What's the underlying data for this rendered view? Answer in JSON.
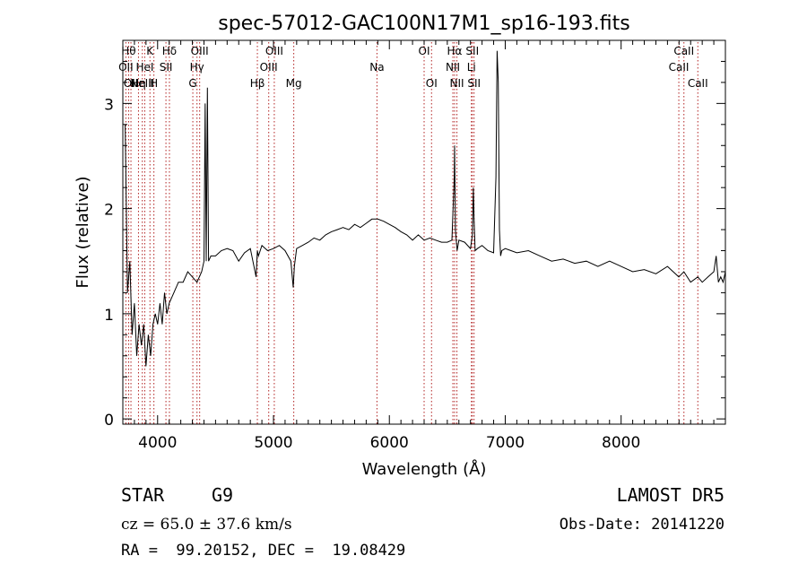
{
  "chart_data": {
    "type": "line",
    "title": "spec-57012-GAC100N17M1_sp16-193.fits",
    "xlabel": "Wavelength (Å)",
    "ylabel": "Flux (relative)",
    "xlim": [
      3700,
      8900
    ],
    "ylim": [
      -0.05,
      3.6
    ],
    "xticks": [
      4000,
      5000,
      6000,
      7000,
      8000
    ],
    "yticks": [
      0,
      1,
      2,
      3
    ],
    "grid": false,
    "line_color": "#000000",
    "marker_color": "#b22222",
    "series": [
      {
        "x": [
          3720,
          3740,
          3760,
          3780,
          3800,
          3820,
          3840,
          3860,
          3880,
          3900,
          3920,
          3940,
          3960,
          3980,
          4000,
          4020,
          4040,
          4060,
          4080,
          4100,
          4140,
          4180,
          4220,
          4260,
          4300,
          4340,
          4380,
          4400,
          4410,
          4420,
          4430,
          4440,
          4460,
          4500,
          4550,
          4600,
          4650,
          4700,
          4750,
          4800,
          4850,
          4861,
          4870,
          4900,
          4950,
          5000,
          5050,
          5100,
          5150,
          5170,
          5180,
          5200,
          5250,
          5300,
          5350,
          5400,
          5450,
          5500,
          5550,
          5600,
          5650,
          5700,
          5750,
          5800,
          5850,
          5900,
          5950,
          6000,
          6050,
          6100,
          6150,
          6200,
          6250,
          6300,
          6350,
          6400,
          6450,
          6500,
          6540,
          6560,
          6563,
          6570,
          6585,
          6600,
          6650,
          6700,
          6716,
          6725,
          6731,
          6740,
          6760,
          6800,
          6850,
          6900,
          6920,
          6930,
          6940,
          6950,
          6960,
          6970,
          7000,
          7050,
          7100,
          7200,
          7300,
          7400,
          7500,
          7600,
          7700,
          7800,
          7900,
          8000,
          8100,
          8200,
          8300,
          8400,
          8498,
          8542,
          8600,
          8662,
          8700,
          8750,
          8800,
          8820,
          8840,
          8860,
          8880,
          8900
        ],
        "y": [
          2.8,
          1.2,
          1.5,
          0.8,
          1.1,
          0.6,
          0.9,
          0.7,
          0.9,
          0.5,
          0.8,
          0.6,
          0.9,
          1.0,
          0.9,
          1.1,
          0.9,
          1.2,
          1.0,
          1.1,
          1.2,
          1.3,
          1.3,
          1.4,
          1.35,
          1.3,
          1.4,
          1.5,
          3.0,
          1.5,
          3.15,
          1.5,
          1.55,
          1.55,
          1.6,
          1.62,
          1.6,
          1.5,
          1.58,
          1.62,
          1.35,
          1.6,
          1.55,
          1.65,
          1.6,
          1.62,
          1.65,
          1.6,
          1.5,
          1.25,
          1.45,
          1.62,
          1.65,
          1.68,
          1.72,
          1.7,
          1.75,
          1.78,
          1.8,
          1.82,
          1.8,
          1.85,
          1.82,
          1.86,
          1.9,
          1.9,
          1.88,
          1.85,
          1.82,
          1.78,
          1.75,
          1.7,
          1.75,
          1.7,
          1.72,
          1.7,
          1.68,
          1.68,
          1.7,
          2.3,
          2.6,
          1.8,
          1.6,
          1.7,
          1.68,
          1.62,
          1.75,
          2.2,
          1.9,
          1.6,
          1.62,
          1.65,
          1.6,
          1.58,
          2.3,
          3.5,
          3.2,
          1.8,
          1.55,
          1.6,
          1.62,
          1.6,
          1.58,
          1.6,
          1.55,
          1.5,
          1.52,
          1.48,
          1.5,
          1.45,
          1.5,
          1.45,
          1.4,
          1.42,
          1.38,
          1.45,
          1.35,
          1.4,
          1.3,
          1.35,
          1.3,
          1.35,
          1.4,
          1.55,
          1.3,
          1.35,
          1.3,
          1.4
        ]
      }
    ],
    "lines": [
      {
        "wave": 3726,
        "label": "OII",
        "row": 1
      },
      {
        "wave": 3750,
        "label": "Hθ",
        "row": 0
      },
      {
        "wave": 3770,
        "label": "OII",
        "row": 2
      },
      {
        "wave": 3835,
        "label": "Hη",
        "row": 2
      },
      {
        "wave": 3868,
        "label": "NeIII",
        "row": 2
      },
      {
        "wave": 3889,
        "label": "HeI",
        "row": 1
      },
      {
        "wave": 3934,
        "label": "K",
        "row": 0
      },
      {
        "wave": 3968,
        "label": "H",
        "row": 2
      },
      {
        "wave": 4072,
        "label": "SII",
        "row": 1
      },
      {
        "wave": 4102,
        "label": "Hδ",
        "row": 0
      },
      {
        "wave": 4304,
        "label": "G",
        "row": 2
      },
      {
        "wave": 4340,
        "label": "Hγ",
        "row": 1
      },
      {
        "wave": 4363,
        "label": "OIII",
        "row": 0
      },
      {
        "wave": 4861,
        "label": "Hβ",
        "row": 2
      },
      {
        "wave": 4959,
        "label": "OIII",
        "row": 1
      },
      {
        "wave": 5007,
        "label": "OIII",
        "row": 0
      },
      {
        "wave": 5175,
        "label": "Mg",
        "row": 2
      },
      {
        "wave": 5893,
        "label": "Na",
        "row": 1
      },
      {
        "wave": 6300,
        "label": "OI",
        "row": 0
      },
      {
        "wave": 6364,
        "label": "OI",
        "row": 2
      },
      {
        "wave": 6548,
        "label": "NII",
        "row": 1
      },
      {
        "wave": 6563,
        "label": "Hα",
        "row": 0
      },
      {
        "wave": 6583,
        "label": "NII",
        "row": 2
      },
      {
        "wave": 6708,
        "label": "Li",
        "row": 1
      },
      {
        "wave": 6716,
        "label": "SII",
        "row": 0
      },
      {
        "wave": 6731,
        "label": "SII",
        "row": 2
      },
      {
        "wave": 8498,
        "label": "CaII",
        "row": 1
      },
      {
        "wave": 8542,
        "label": "CaII",
        "row": 0
      },
      {
        "wave": 8662,
        "label": "CaII",
        "row": 2
      }
    ]
  },
  "info": {
    "class": "STAR",
    "subclass": "G9",
    "survey": "LAMOST DR5",
    "redshift": "cz = 65.0 ± 37.6 km/s",
    "obs_date": "Obs-Date: 20141220",
    "coords": "RA =  99.20152, DEC =  19.08429"
  }
}
